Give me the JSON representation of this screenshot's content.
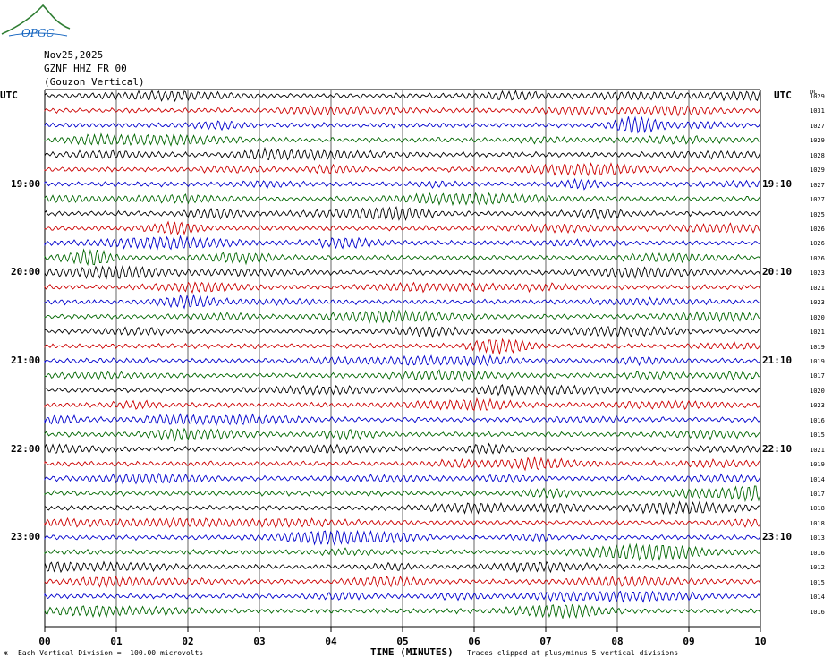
{
  "logo_text": "OPGC",
  "header": {
    "date": "Nov25,2025",
    "station": "GZNF HHZ FR 00",
    "location": "(Gouzon Vertical)"
  },
  "utc_left": "UTC",
  "utc_right": "UTC",
  "dc_header": "DC",
  "chart_data": {
    "type": "line",
    "xlabel": "TIME (MINUTES)",
    "xlim": [
      0,
      10
    ],
    "x_ticks": [
      "00",
      "01",
      "02",
      "03",
      "04",
      "05",
      "06",
      "07",
      "08",
      "09",
      "10"
    ],
    "trace_colors": [
      "#000000",
      "#cc0000",
      "#0000cc",
      "#006600"
    ],
    "row_count": 36,
    "left_time_labels": [
      {
        "label": "19:00",
        "row": 6
      },
      {
        "label": "20:00",
        "row": 12
      },
      {
        "label": "21:00",
        "row": 18
      },
      {
        "label": "22:00",
        "row": 24
      },
      {
        "label": "23:00",
        "row": 30
      }
    ],
    "right_time_labels": [
      {
        "label": "19:10",
        "row": 6
      },
      {
        "label": "20:10",
        "row": 12
      },
      {
        "label": "21:10",
        "row": 18
      },
      {
        "label": "22:10",
        "row": 24
      },
      {
        "label": "23:10",
        "row": 30
      }
    ],
    "dc_offsets": [
      "1029",
      "1031",
      "1027",
      "1029",
      "1028",
      "1029",
      "1027",
      "1027",
      "1025",
      "1026",
      "1026",
      "1026",
      "1023",
      "1021",
      "1023",
      "1020",
      "1021",
      "1019",
      "1019",
      "1017",
      "1020",
      "1023",
      "1016",
      "1015",
      "1021",
      "1019",
      "1014",
      "1017",
      "1018",
      "1018",
      "1013",
      "1016",
      "1012",
      "1015",
      "1014",
      "1016"
    ],
    "grid": true
  },
  "footer": {
    "scale": "Each Vertical Division =  100.00 microvolts",
    "clip_note": "Traces clipped at plus/minus 5 vertical divisions"
  }
}
